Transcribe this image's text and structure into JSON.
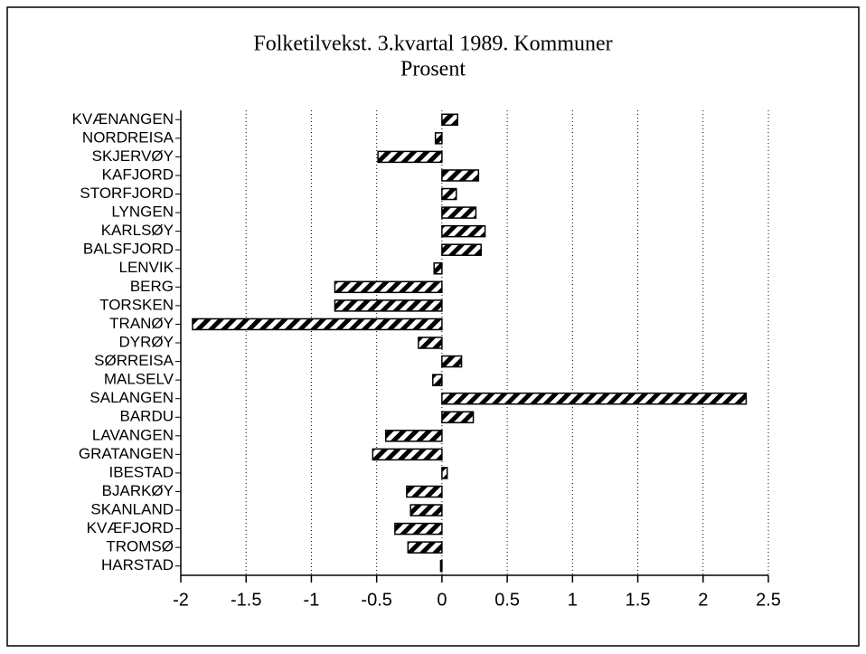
{
  "chart_data": {
    "type": "bar",
    "orientation": "horizontal",
    "title": "Folketilvekst. 3.kvartal 1989. Kommuner",
    "subtitle": "Prosent",
    "categories": [
      "KVÆNANGEN",
      "NORDREISA",
      "SKJERVØY",
      "KAFJORD",
      "STORFJORD",
      "LYNGEN",
      "KARLSØY",
      "BALSFJORD",
      "LENVIK",
      "BERG",
      "TORSKEN",
      "TRANØY",
      "DYRØY",
      "SØRREISA",
      "MALSELV",
      "SALANGEN",
      "BARDU",
      "LAVANGEN",
      "GRATANGEN",
      "IBESTAD",
      "BJARKØY",
      "SKANLAND",
      "KVÆFJORD",
      "TROMSØ",
      "HARSTAD"
    ],
    "values": [
      0.12,
      -0.05,
      -0.49,
      0.28,
      0.11,
      0.26,
      0.33,
      0.3,
      -0.06,
      -0.82,
      -0.82,
      -1.91,
      -0.18,
      0.15,
      -0.07,
      2.33,
      0.24,
      -0.43,
      -0.53,
      0.04,
      -0.27,
      -0.24,
      -0.36,
      -0.26,
      -0.01
    ],
    "color": "#000000",
    "xlim": [
      -2,
      2.5
    ],
    "xticks": [
      -2,
      -1.5,
      -1,
      -0.5,
      0,
      0.5,
      1,
      1.5,
      2,
      2.5
    ],
    "grid": true
  }
}
